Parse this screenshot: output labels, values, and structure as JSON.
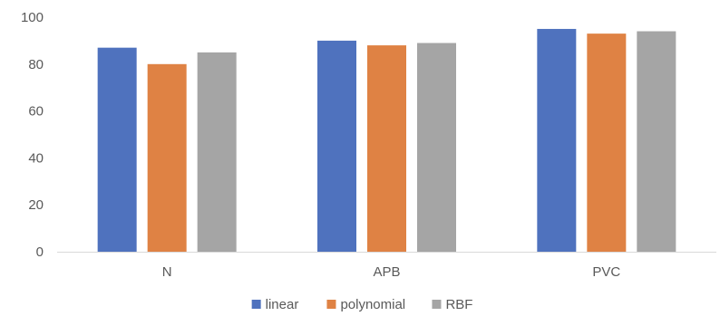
{
  "chart_data": {
    "type": "bar",
    "categories": [
      "N",
      "APB",
      "PVC"
    ],
    "series": [
      {
        "name": "linear",
        "color": "#4f72be",
        "values": [
          87,
          90,
          95
        ]
      },
      {
        "name": "polynomial",
        "color": "#df8244",
        "values": [
          80,
          88,
          93
        ]
      },
      {
        "name": "RBF",
        "color": "#a5a5a5",
        "values": [
          85,
          89,
          94
        ]
      }
    ],
    "ylim": [
      0,
      100
    ],
    "yticks": [
      0,
      20,
      40,
      60,
      80,
      100
    ],
    "grid": false,
    "legend_position": "bottom",
    "title": "",
    "xlabel": "",
    "ylabel": ""
  }
}
